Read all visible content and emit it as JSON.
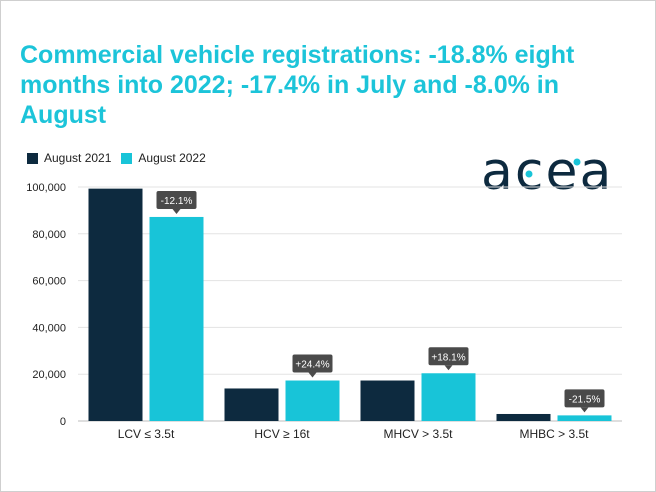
{
  "title": "Commercial vehicle registrations: -18.8% eight months into 2022; -17.4% in July and -8.0% in August",
  "logo_text": "acea",
  "colors": {
    "title": "#1cc4d9",
    "series_2021": "#0d2a3f",
    "series_2022": "#18c4d8",
    "label_bg": "#4a4a4a",
    "grid": "#e3e3e3",
    "logo": "#0d2a3f",
    "logo_dot": "#18c4d8"
  },
  "chart_data": {
    "type": "bar",
    "title": "Commercial vehicle registrations: -18.8% eight months into 2022; -17.4% in July and -8.0% in August",
    "categories": [
      "LCV ≤ 3.5t",
      "HCV ≥ 16t",
      "MHCV > 3.5t",
      "MHBC > 3.5t"
    ],
    "series": [
      {
        "name": "August 2021",
        "values": [
          99300,
          13900,
          17300,
          3000
        ]
      },
      {
        "name": "August 2022",
        "values": [
          87200,
          17300,
          20400,
          2400
        ]
      }
    ],
    "data_labels": [
      "-12.1%",
      "+24.4%",
      "+18.1%",
      "-21.5%"
    ],
    "yticks": [
      "0",
      "20,000",
      "40,000",
      "60,000",
      "80,000",
      "100,000"
    ],
    "ylim": [
      0,
      100000
    ],
    "xlabel": "",
    "ylabel": "",
    "legend": "top-left",
    "grid": true
  }
}
